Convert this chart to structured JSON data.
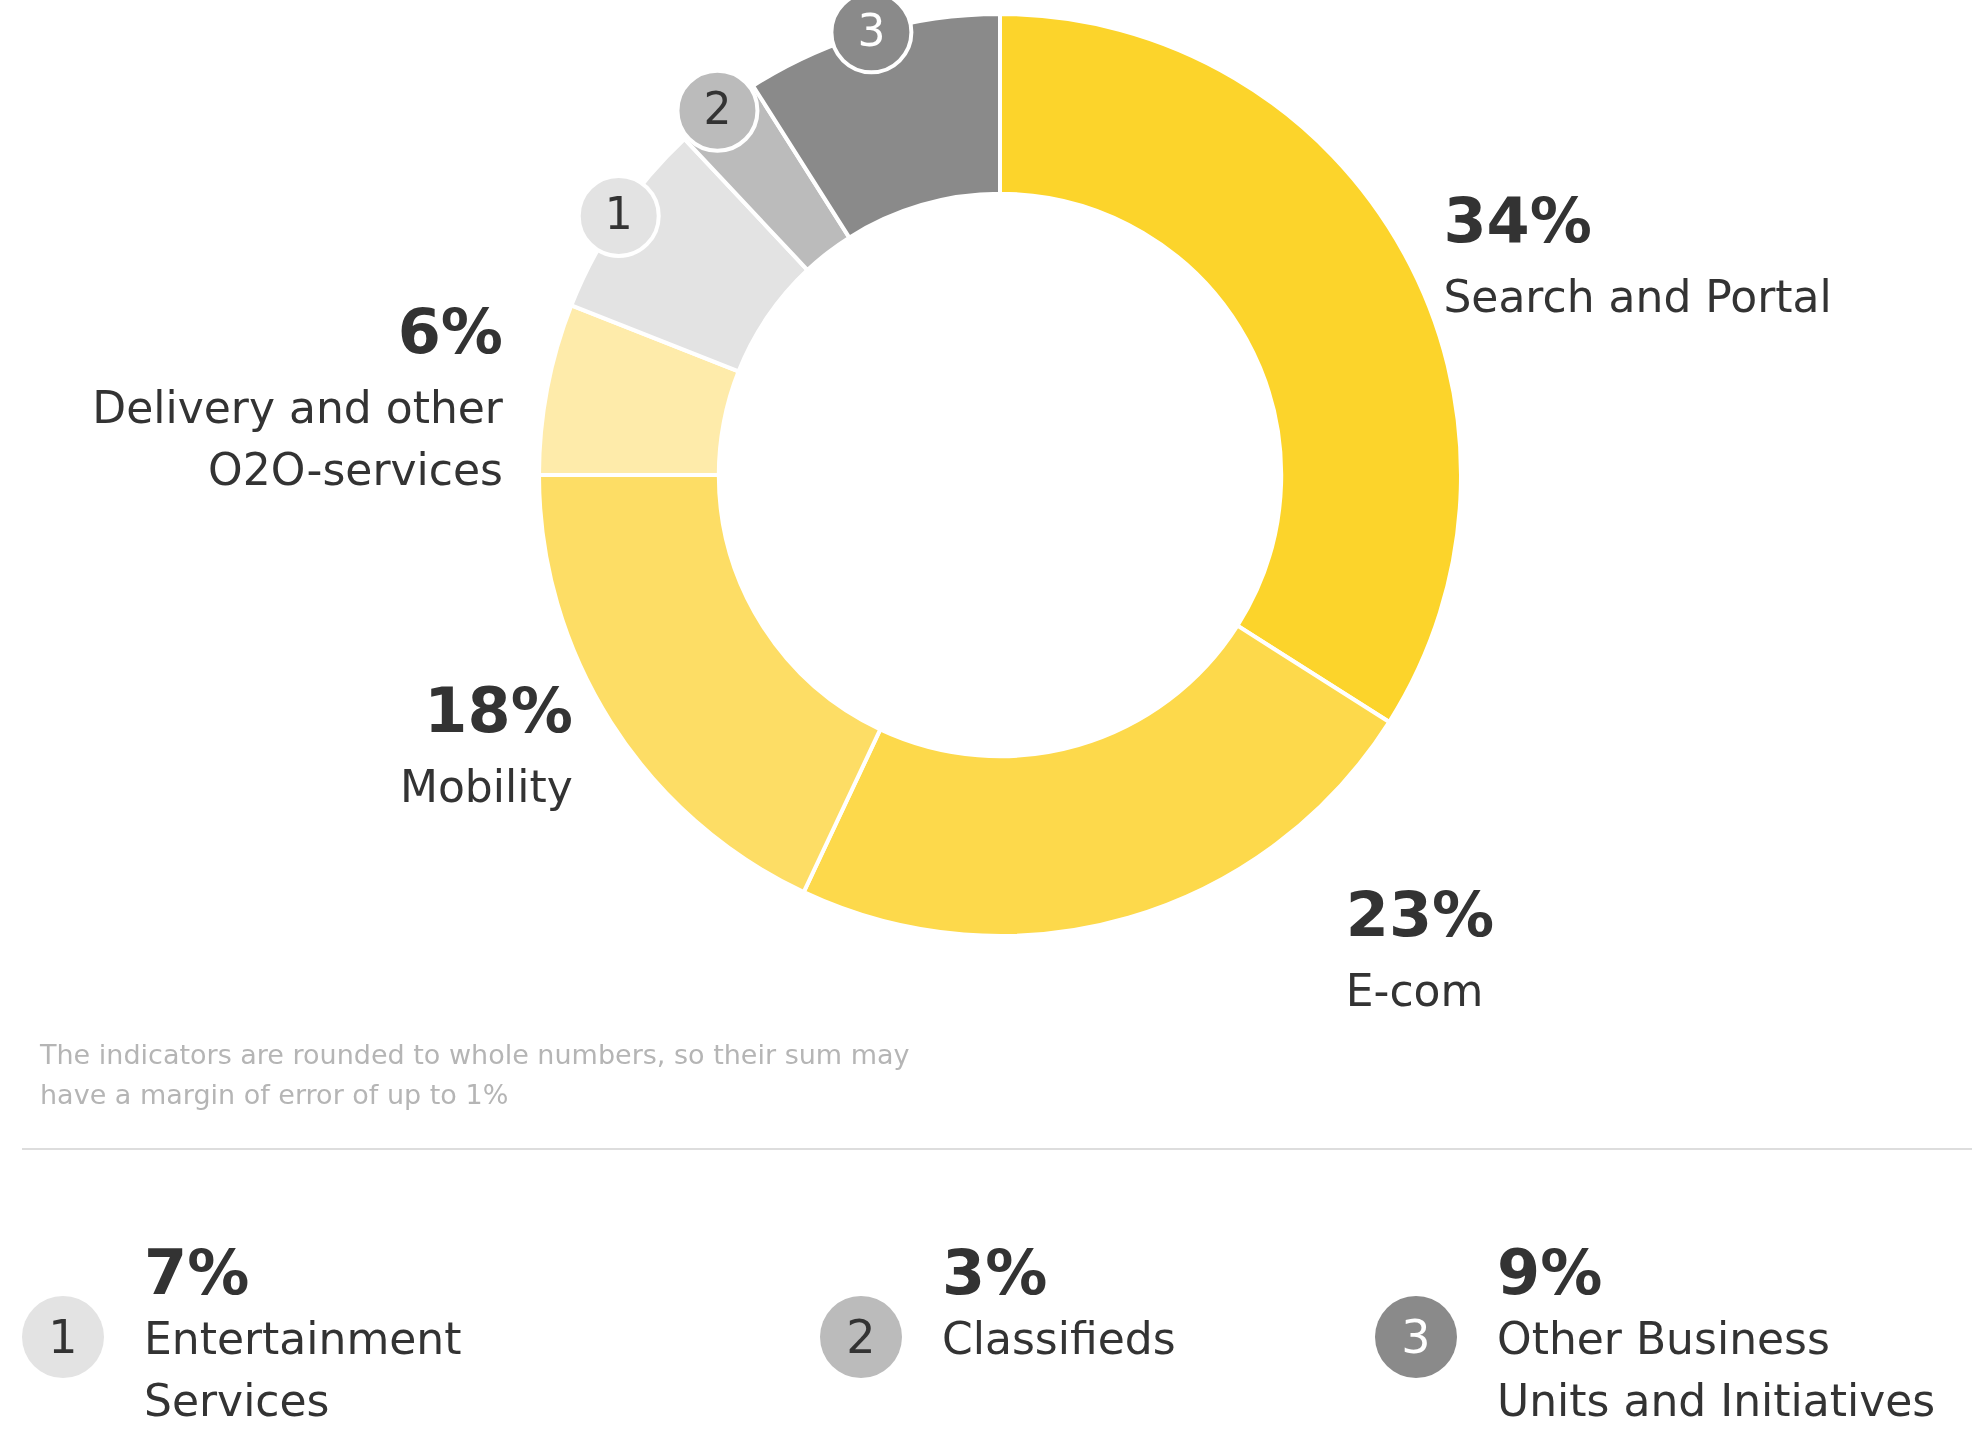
{
  "chart_data": {
    "type": "donut",
    "categories": [
      "Search and Portal",
      "E-com",
      "Mobility",
      "Delivery and other O2O-services",
      "Entertainment Services",
      "Classifieds",
      "Other Business Units and Initiatives"
    ],
    "values": [
      34,
      23,
      18,
      6,
      7,
      3,
      9
    ],
    "colors": [
      "#fcd42b",
      "#fdd94b",
      "#fddd65",
      "#feebaa",
      "#e3e3e3",
      "#bbbbbb",
      "#8a8a8a"
    ],
    "value_labels": [
      "34%",
      "23%",
      "18%",
      "6%",
      "7%",
      "3%",
      "9%"
    ],
    "legend": "bottom",
    "annotations": [
      "The indicators are rounded to whole numbers, so their sum may have a margin of error of up to 1%",
      {
        "text": "1",
        "x": "Entertainment Services"
      },
      {
        "text": "2",
        "x": "Classifieds"
      },
      {
        "text": "3",
        "x": "Other Business Units and Initiatives"
      }
    ]
  }
}
